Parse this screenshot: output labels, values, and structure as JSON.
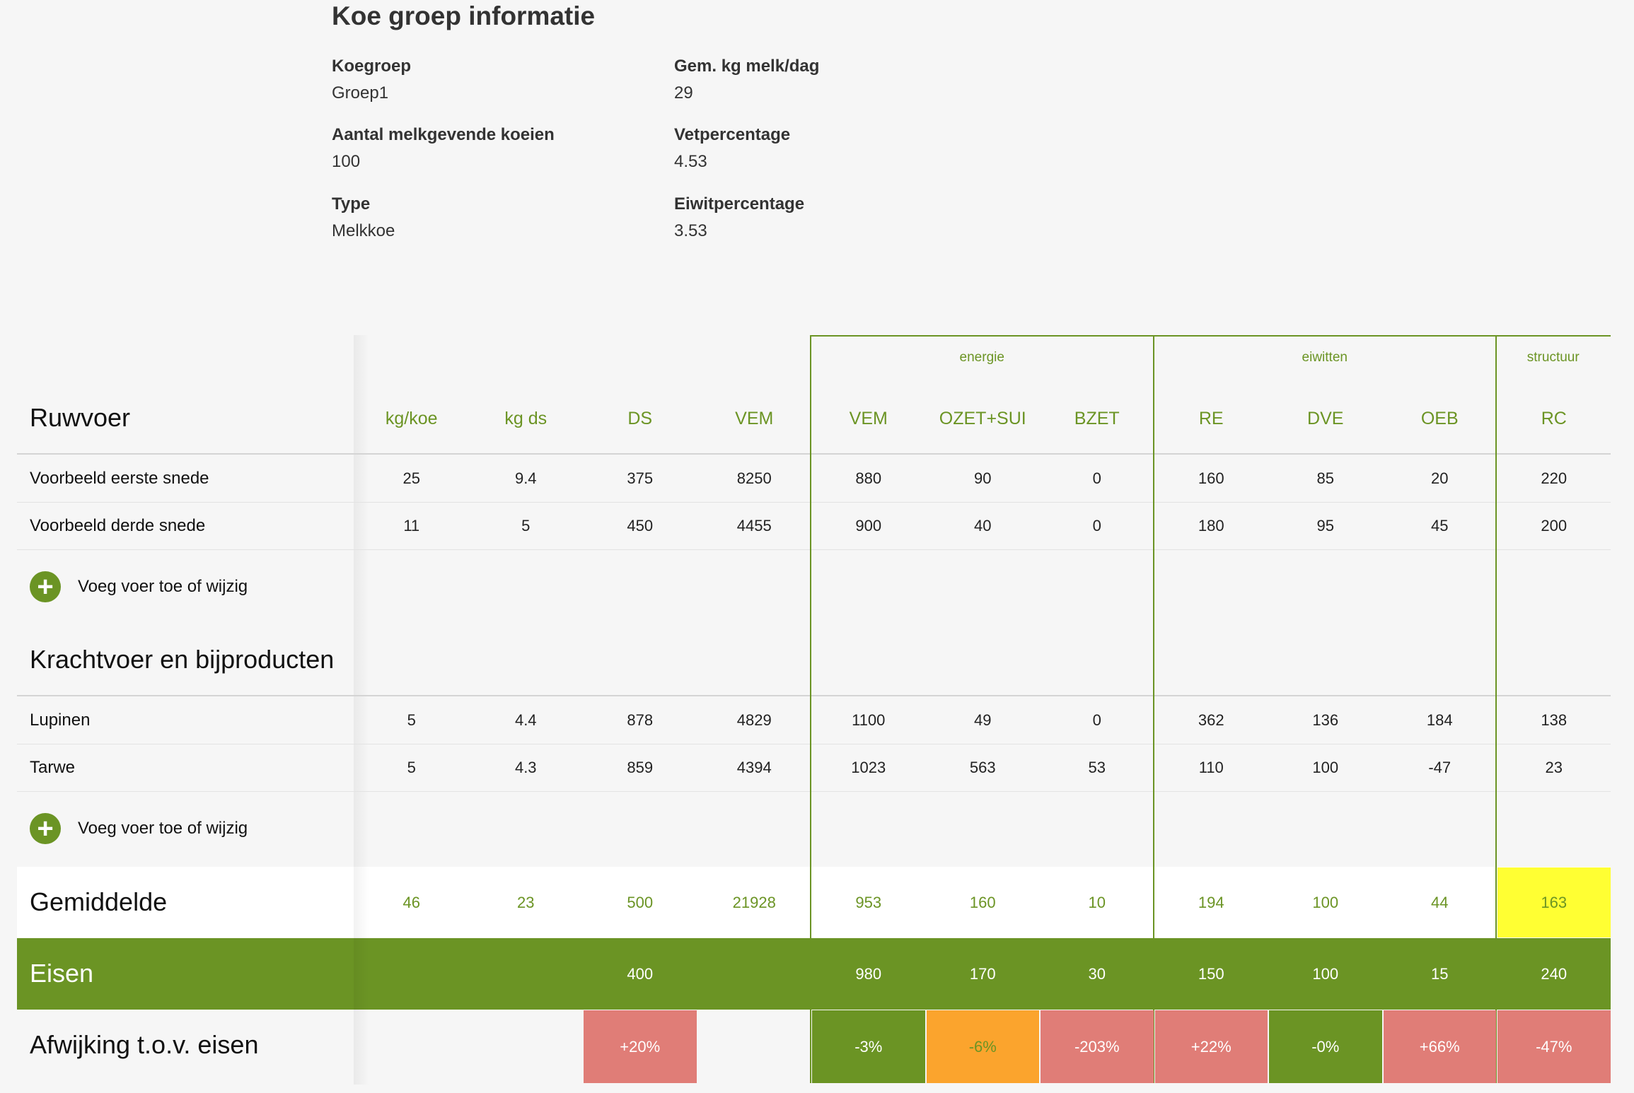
{
  "info": {
    "title": "Koe groep informatie",
    "items": [
      {
        "label": "Koegroep",
        "value": "Groep1"
      },
      {
        "label": "Aantal melkgevende koeien",
        "value": "100"
      },
      {
        "label": "Type",
        "value": "Melkkoe"
      },
      {
        "label": "Gem. kg melk/dag",
        "value": "29"
      },
      {
        "label": "Vetpercentage",
        "value": "4.53"
      },
      {
        "label": "Eiwitpercentage",
        "value": "3.53"
      }
    ]
  },
  "table": {
    "groups": {
      "energie": "energie",
      "eiwitten": "eiwitten",
      "structuur": "structuur"
    },
    "columns": [
      "kg/koe",
      "kg ds",
      "DS",
      "VEM",
      "VEM",
      "OZET+SUI",
      "BZET",
      "RE",
      "DVE",
      "OEB",
      "RC"
    ],
    "ruwvoer_title": "Ruwvoer",
    "ruwvoer_rows": [
      {
        "name": "Voorbeeld eerste snede",
        "values": [
          "25",
          "9.4",
          "375",
          "8250",
          "880",
          "90",
          "0",
          "160",
          "85",
          "20",
          "220"
        ]
      },
      {
        "name": "Voorbeeld derde snede",
        "values": [
          "11",
          "5",
          "450",
          "4455",
          "900",
          "40",
          "0",
          "180",
          "95",
          "45",
          "200"
        ]
      }
    ],
    "add_label": "Voeg voer toe of wijzig",
    "kracht_title": "Krachtvoer en bijproducten",
    "kracht_rows": [
      {
        "name": "Lupinen",
        "values": [
          "5",
          "4.4",
          "878",
          "4829",
          "1100",
          "49",
          "0",
          "362",
          "136",
          "184",
          "138"
        ]
      },
      {
        "name": "Tarwe",
        "values": [
          "5",
          "4.3",
          "859",
          "4394",
          "1023",
          "563",
          "53",
          "110",
          "100",
          "-47",
          "23"
        ]
      }
    ],
    "gemiddelde": {
      "label": "Gemiddelde",
      "values": [
        "46",
        "23",
        "500",
        "21928",
        "953",
        "160",
        "10",
        "194",
        "100",
        "44",
        "163"
      ]
    },
    "eisen": {
      "label": "Eisen",
      "values": [
        "",
        "",
        "400",
        "",
        "980",
        "170",
        "30",
        "150",
        "100",
        "15",
        "240"
      ]
    },
    "afwijking": {
      "label": "Afwijking t.o.v. eisen",
      "values": [
        "",
        "",
        "+20%",
        "",
        "-3%",
        "-6%",
        "-203%",
        "+22%",
        "-0%",
        "+66%",
        "-47%"
      ]
    },
    "colors": {
      "green": "#6b9424",
      "red": "#e07d77",
      "orange": "#fba42d",
      "yellow": "#ffff33"
    },
    "afwijking_status": [
      "none",
      "none",
      "red",
      "none",
      "green",
      "orange",
      "red",
      "red",
      "green",
      "red",
      "red"
    ],
    "gemiddelde_highlight": [
      "",
      "",
      "",
      "",
      "",
      "",
      "",
      "",
      "",
      "",
      "yellow"
    ]
  }
}
